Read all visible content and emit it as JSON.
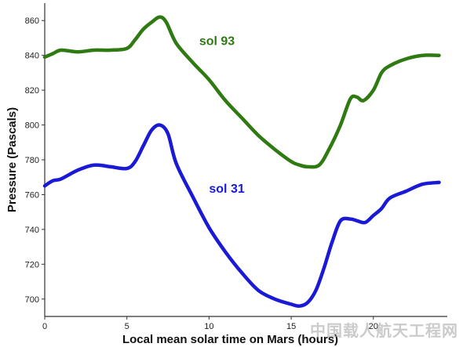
{
  "chart_data": {
    "type": "line",
    "title": "",
    "xlabel": "Local mean solar time on Mars (hours)",
    "ylabel": "Pressure (Pascals)",
    "xlim": [
      0,
      24.5
    ],
    "ylim": [
      690,
      870
    ],
    "x_ticks": [
      0,
      5,
      10,
      15,
      20
    ],
    "y_ticks": [
      700,
      720,
      740,
      760,
      780,
      800,
      820,
      840,
      860
    ],
    "grid": false,
    "series": [
      {
        "name": "sol 93",
        "color": "#2f7a12",
        "x": [
          0,
          0.5,
          1,
          2,
          3,
          4,
          5,
          5.5,
          6,
          6.5,
          7,
          7.4,
          8,
          9,
          10,
          11,
          12,
          13,
          14,
          15,
          15.5,
          16,
          16.7,
          17.3,
          18,
          18.6,
          19,
          19.4,
          20,
          20.5,
          21,
          22,
          23,
          24
        ],
        "y": [
          839,
          841,
          843,
          842,
          843,
          843,
          844,
          849,
          855,
          859,
          862,
          859,
          847,
          836,
          826,
          814,
          804,
          794,
          786,
          779,
          777,
          776,
          777,
          786,
          800,
          815,
          816,
          814,
          820,
          830,
          834,
          838,
          840,
          840
        ]
      },
      {
        "name": "sol 31",
        "color": "#1a1ad6",
        "x": [
          0,
          0.5,
          1,
          2,
          3,
          4,
          5,
          5.5,
          6,
          6.5,
          7,
          7.5,
          8,
          9,
          10,
          11,
          12,
          13,
          14,
          15,
          15.5,
          16,
          16.5,
          17,
          17.5,
          18,
          18.6,
          19,
          19.5,
          20,
          20.5,
          21,
          22,
          23,
          24
        ],
        "y": [
          765,
          768,
          769,
          774,
          777,
          776,
          775,
          779,
          788,
          797,
          800,
          795,
          778,
          759,
          741,
          727,
          715,
          705,
          700,
          697,
          696,
          698,
          705,
          718,
          733,
          745,
          746,
          745,
          744,
          748,
          752,
          758,
          762,
          766,
          767
        ]
      }
    ]
  },
  "annotations": [
    {
      "label": "sol 93",
      "series": "sol 93",
      "x": 9.4,
      "y": 846
    },
    {
      "label": "sol 31",
      "series": "sol 31",
      "x": 10.0,
      "y": 761
    }
  ],
  "watermark": "中国载人航天工程网"
}
